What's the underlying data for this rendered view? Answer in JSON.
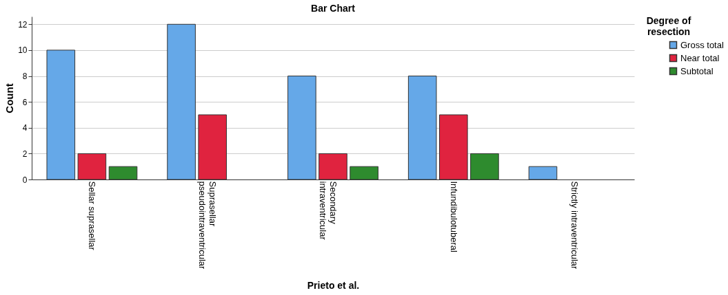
{
  "chart_data": {
    "type": "bar",
    "title": "Bar Chart",
    "xlabel": "Prieto et al.",
    "ylabel": "Count",
    "legend_title": "Degree of resection",
    "categories": [
      "Sellar suprasellar",
      "Suprasellar pseudointraventricular",
      "Secondary intraventricular",
      "Infundibulotuberal",
      "Strictly intraventricular"
    ],
    "series": [
      {
        "name": "Gross total",
        "color": "#65a8e8",
        "values": [
          10,
          12,
          8,
          8,
          1
        ]
      },
      {
        "name": "Near total",
        "color": "#e0233f",
        "values": [
          2,
          5,
          2,
          5,
          null
        ]
      },
      {
        "name": "Subtotal",
        "color": "#2e8b2e",
        "values": [
          1,
          null,
          1,
          2,
          null
        ]
      }
    ],
    "ylim": [
      0,
      12.6
    ],
    "yticks": [
      0,
      2,
      4,
      6,
      8,
      10,
      12
    ],
    "grid": "y",
    "legend": "top right"
  }
}
